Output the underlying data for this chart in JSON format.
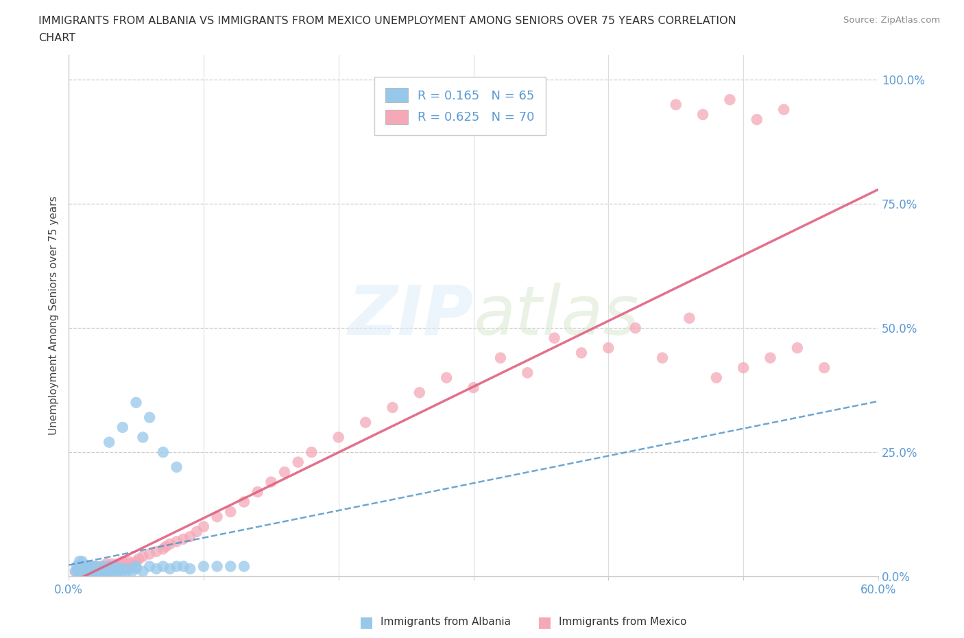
{
  "title_line1": "IMMIGRANTS FROM ALBANIA VS IMMIGRANTS FROM MEXICO UNEMPLOYMENT AMONG SENIORS OVER 75 YEARS CORRELATION",
  "title_line2": "CHART",
  "source": "Source: ZipAtlas.com",
  "ylabel": "Unemployment Among Seniors over 75 years",
  "xlim": [
    0.0,
    0.6
  ],
  "ylim": [
    0.0,
    1.05
  ],
  "albania_R": 0.165,
  "albania_N": 65,
  "mexico_R": 0.625,
  "mexico_N": 70,
  "albania_color": "#97C8EA",
  "mexico_color": "#F4A8B8",
  "albania_line_color": "#4A90C4",
  "mexico_line_color": "#E06080",
  "legend_R_color": "#5b9bd5",
  "legend_N_color": "#333333",
  "ytick_color": "#5b9bd5",
  "xtick_color": "#5b9bd5",
  "watermark_color": "#ddeeff",
  "albania_scatter_x": [
    0.005,
    0.006,
    0.007,
    0.008,
    0.008,
    0.009,
    0.01,
    0.01,
    0.01,
    0.012,
    0.013,
    0.014,
    0.015,
    0.015,
    0.016,
    0.017,
    0.018,
    0.018,
    0.019,
    0.02,
    0.02,
    0.021,
    0.022,
    0.023,
    0.024,
    0.025,
    0.026,
    0.027,
    0.028,
    0.029,
    0.03,
    0.031,
    0.032,
    0.033,
    0.034,
    0.035,
    0.036,
    0.037,
    0.038,
    0.04,
    0.041,
    0.043,
    0.045,
    0.047,
    0.05,
    0.05,
    0.055,
    0.06,
    0.065,
    0.07,
    0.075,
    0.08,
    0.085,
    0.09,
    0.1,
    0.11,
    0.12,
    0.13,
    0.03,
    0.04,
    0.05,
    0.055,
    0.06,
    0.07,
    0.08
  ],
  "albania_scatter_y": [
    0.01,
    0.02,
    0.01,
    0.015,
    0.03,
    0.01,
    0.01,
    0.02,
    0.03,
    0.01,
    0.02,
    0.01,
    0.01,
    0.02,
    0.01,
    0.01,
    0.015,
    0.02,
    0.01,
    0.01,
    0.02,
    0.01,
    0.015,
    0.01,
    0.02,
    0.01,
    0.015,
    0.01,
    0.02,
    0.01,
    0.01,
    0.015,
    0.02,
    0.01,
    0.015,
    0.02,
    0.01,
    0.01,
    0.015,
    0.01,
    0.015,
    0.01,
    0.015,
    0.01,
    0.015,
    0.02,
    0.01,
    0.02,
    0.015,
    0.02,
    0.015,
    0.02,
    0.02,
    0.015,
    0.02,
    0.02,
    0.02,
    0.02,
    0.27,
    0.3,
    0.35,
    0.28,
    0.32,
    0.25,
    0.22
  ],
  "mexico_scatter_x": [
    0.005,
    0.007,
    0.008,
    0.01,
    0.012,
    0.013,
    0.015,
    0.015,
    0.016,
    0.018,
    0.019,
    0.02,
    0.022,
    0.024,
    0.026,
    0.028,
    0.03,
    0.032,
    0.034,
    0.036,
    0.038,
    0.04,
    0.042,
    0.044,
    0.046,
    0.05,
    0.052,
    0.055,
    0.06,
    0.065,
    0.07,
    0.072,
    0.075,
    0.08,
    0.085,
    0.09,
    0.095,
    0.1,
    0.11,
    0.12,
    0.13,
    0.14,
    0.15,
    0.16,
    0.17,
    0.18,
    0.2,
    0.22,
    0.24,
    0.26,
    0.28,
    0.3,
    0.32,
    0.34,
    0.36,
    0.38,
    0.4,
    0.42,
    0.44,
    0.46,
    0.48,
    0.5,
    0.52,
    0.54,
    0.56,
    0.45,
    0.47,
    0.49,
    0.51,
    0.53
  ],
  "mexico_scatter_y": [
    0.01,
    0.015,
    0.01,
    0.02,
    0.01,
    0.015,
    0.01,
    0.02,
    0.015,
    0.01,
    0.015,
    0.02,
    0.01,
    0.015,
    0.02,
    0.025,
    0.02,
    0.025,
    0.02,
    0.025,
    0.02,
    0.03,
    0.025,
    0.03,
    0.025,
    0.03,
    0.035,
    0.04,
    0.045,
    0.05,
    0.055,
    0.06,
    0.065,
    0.07,
    0.075,
    0.08,
    0.09,
    0.1,
    0.12,
    0.13,
    0.15,
    0.17,
    0.19,
    0.21,
    0.23,
    0.25,
    0.28,
    0.31,
    0.34,
    0.37,
    0.4,
    0.38,
    0.44,
    0.41,
    0.48,
    0.45,
    0.46,
    0.5,
    0.44,
    0.52,
    0.4,
    0.42,
    0.44,
    0.46,
    0.42,
    0.95,
    0.93,
    0.96,
    0.92,
    0.94
  ]
}
